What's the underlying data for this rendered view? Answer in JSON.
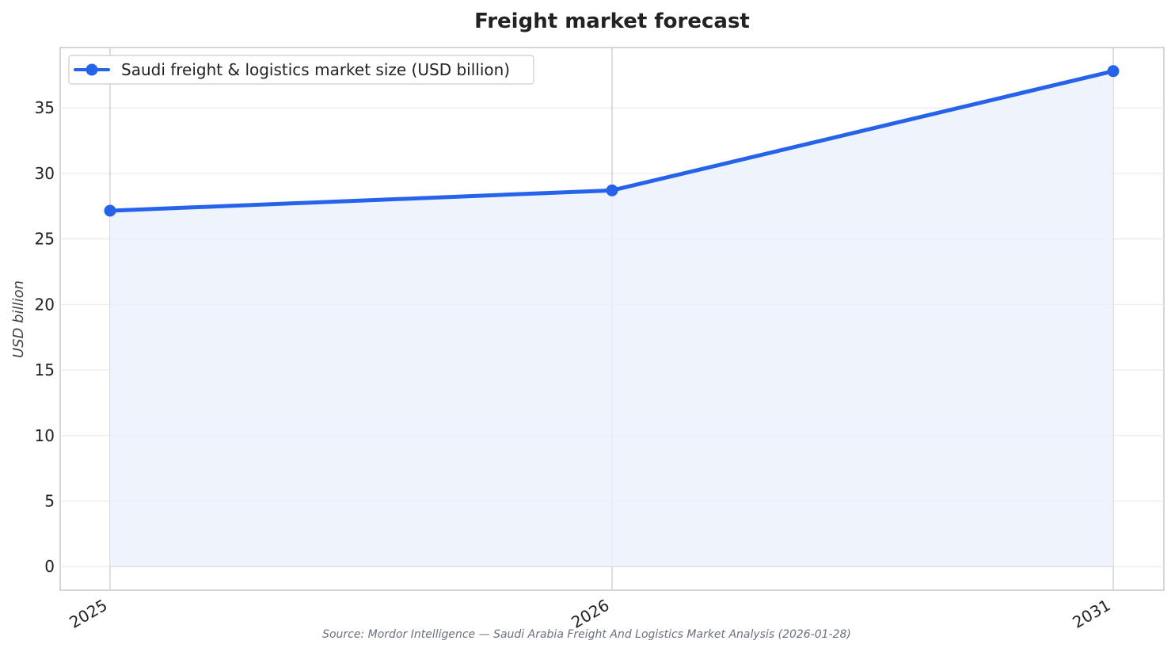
{
  "chart_data": {
    "type": "line",
    "title": "Freight market forecast",
    "ylabel": "USD billion",
    "xlabel": "",
    "categories": [
      "2025",
      "2026",
      "2031"
    ],
    "series": [
      {
        "name": "Saudi freight & logistics market size (USD billion)",
        "values": [
          27.15,
          28.7,
          37.8
        ],
        "color": "#2563eb",
        "fill_color": "#ecf1fb"
      }
    ],
    "ylim": [
      -1.8,
      39.6
    ],
    "yticks": [
      0,
      5,
      10,
      15,
      20,
      25,
      30,
      35
    ],
    "grid": true,
    "legend_position": "top-left",
    "source": "Source: Mordor Intelligence — Saudi Arabia Freight And Logistics Market Analysis (2026-01-28)"
  }
}
